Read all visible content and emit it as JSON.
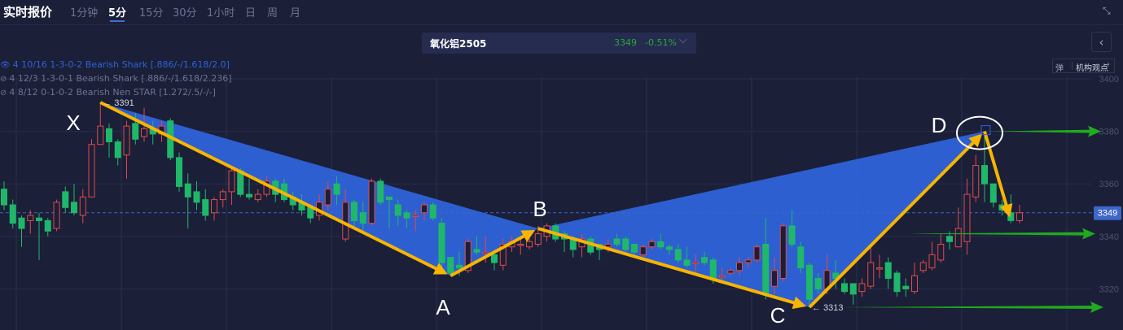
{
  "header": {
    "title": "实时报价",
    "tabs": [
      {
        "label": "1分钟",
        "active": false
      },
      {
        "label": "5分",
        "active": true
      },
      {
        "label": "15分",
        "active": false
      },
      {
        "label": "30分",
        "active": false
      },
      {
        "label": "1小时",
        "active": false
      },
      {
        "label": "日",
        "active": false
      },
      {
        "label": "周",
        "active": false
      },
      {
        "label": "月",
        "active": false
      }
    ],
    "shrink_icon": "collapse-arrows-icon"
  },
  "symbol": {
    "name": "氧化铝2505",
    "price": "3349",
    "change": "-0.51%",
    "dropdown_icon": "chevron-down-icon"
  },
  "side": {
    "back_icon": "chevron-left-icon",
    "views_label": "机构观点",
    "views_icon": "chevron-right-icon"
  },
  "legend": [
    {
      "text": "4 10/16 1-3-0-2 Bearish Shark [.886/-/1.618/2.0]",
      "visible": true,
      "color": "#2f63d8"
    },
    {
      "text": "4 12/3 1-3-0-1 Bearish Shark [.886/-/1.618/2.236]",
      "visible": false,
      "color": "#6d7391"
    },
    {
      "text": "4 8/12 0-1-0-2 Bearish Nen STAR [1.272/.5/-/-]",
      "visible": false,
      "color": "#6d7391"
    }
  ],
  "colors": {
    "up": "#e04a4a",
    "down": "#1fb86a",
    "pattern_fill": "#2e63d9",
    "arrow_yellow": "#f7b500",
    "arrow_green": "#1faa1f",
    "background": "#1b1f38",
    "price_tag": "#3d67c9"
  },
  "chart_data": {
    "type": "candlestick",
    "yaxis": {
      "ticks": [
        3400,
        3380,
        3360,
        3340,
        3320
      ],
      "range": [
        3300,
        3400
      ],
      "position": "right"
    },
    "grid": true,
    "last_price": 3349,
    "candles_ohlc": [
      [
        3358,
        3361,
        3350,
        3352
      ],
      [
        3352,
        3354,
        3343,
        3345
      ],
      [
        3347,
        3348,
        3336,
        3343
      ],
      [
        3346,
        3350,
        3341,
        3348
      ],
      [
        3347,
        3349,
        3331,
        3346
      ],
      [
        3346,
        3347,
        3340,
        3342
      ],
      [
        3343,
        3354,
        3342,
        3353
      ],
      [
        3357,
        3359,
        3349,
        3351
      ],
      [
        3353,
        3360,
        3348,
        3349
      ],
      [
        3348,
        3358,
        3345,
        3355
      ],
      [
        3355,
        3377,
        3355,
        3375
      ],
      [
        3375,
        3391,
        3375,
        3382
      ],
      [
        3381,
        3383,
        3370,
        3376
      ],
      [
        3376,
        3377,
        3367,
        3370
      ],
      [
        3371,
        3384,
        3362,
        3382
      ],
      [
        3383,
        3387,
        3375,
        3377
      ],
      [
        3378,
        3389,
        3376,
        3381
      ],
      [
        3381,
        3384,
        3375,
        3379
      ],
      [
        3379,
        3384,
        3376,
        3382
      ],
      [
        3384,
        3385,
        3369,
        3370
      ],
      [
        3370,
        3372,
        3357,
        3359
      ],
      [
        3360,
        3364,
        3343,
        3355
      ],
      [
        3357,
        3361,
        3350,
        3353
      ],
      [
        3354,
        3358,
        3346,
        3348
      ],
      [
        3349,
        3355,
        3346,
        3354
      ],
      [
        3354,
        3358,
        3351,
        3357
      ],
      [
        3357,
        3366,
        3352,
        3365
      ],
      [
        3365,
        3366,
        3355,
        3356
      ],
      [
        3356,
        3362,
        3354,
        3355
      ],
      [
        3354,
        3358,
        3353,
        3356
      ],
      [
        3356,
        3363,
        3355,
        3361
      ],
      [
        3361,
        3362,
        3353,
        3356
      ],
      [
        3360,
        3362,
        3353,
        3354
      ],
      [
        3355,
        3357,
        3350,
        3352
      ],
      [
        3353,
        3356,
        3348,
        3350
      ],
      [
        3351,
        3352,
        3345,
        3347
      ],
      [
        3348,
        3356,
        3346,
        3353
      ],
      [
        3352,
        3361,
        3350,
        3358
      ],
      [
        3360,
        3363,
        3352,
        3356
      ],
      [
        3339,
        3358,
        3338,
        3353
      ],
      [
        3353,
        3354,
        3343,
        3346
      ],
      [
        3349,
        3353,
        3342,
        3345
      ],
      [
        3345,
        3362,
        3344,
        3361
      ],
      [
        3361,
        3362,
        3352,
        3353
      ],
      [
        3355,
        3355,
        3343,
        3354
      ],
      [
        3352,
        3354,
        3344,
        3348
      ],
      [
        3349,
        3350,
        3343,
        3347
      ],
      [
        3348,
        3350,
        3342,
        3348
      ],
      [
        3349,
        3353,
        3346,
        3352
      ],
      [
        3352,
        3353,
        3346,
        3347
      ],
      [
        3345,
        3347,
        3328,
        3330
      ],
      [
        3332,
        3332,
        3325,
        3326
      ],
      [
        3329,
        3334,
        3325,
        3328
      ],
      [
        3327,
        3339,
        3326,
        3338
      ],
      [
        3335,
        3340,
        3333,
        3334
      ],
      [
        3334,
        3340,
        3330,
        3334
      ],
      [
        3333,
        3335,
        3327,
        3330
      ],
      [
        3329,
        3339,
        3327,
        3337
      ],
      [
        3336,
        3340,
        3334,
        3338
      ],
      [
        3337,
        3340,
        3333,
        3337
      ],
      [
        3336,
        3340,
        3335,
        3338
      ],
      [
        3337,
        3344,
        3336,
        3341
      ],
      [
        3340,
        3345,
        3338,
        3344
      ],
      [
        3344,
        3345,
        3338,
        3339
      ],
      [
        3341,
        3342,
        3334,
        3339
      ],
      [
        3339,
        3340,
        3332,
        3335
      ],
      [
        3336,
        3341,
        3332,
        3339
      ],
      [
        3339,
        3340,
        3333,
        3334
      ],
      [
        3337,
        3337,
        3331,
        3335
      ],
      [
        3336,
        3339,
        3334,
        3337
      ],
      [
        3339,
        3341,
        3336,
        3337
      ],
      [
        3339,
        3340,
        3334,
        3335
      ],
      [
        3337,
        3337,
        3333,
        3334
      ],
      [
        3333,
        3337,
        3332,
        3336
      ],
      [
        3336,
        3339,
        3335,
        3338
      ],
      [
        3338,
        3341,
        3335,
        3336
      ],
      [
        3336,
        3337,
        3333,
        3335
      ],
      [
        3335,
        3337,
        3330,
        3331
      ],
      [
        3331,
        3336,
        3328,
        3329
      ],
      [
        3330,
        3333,
        3325,
        3330
      ],
      [
        3332,
        3334,
        3329,
        3330
      ],
      [
        3331,
        3332,
        3322,
        3324
      ],
      [
        3325,
        3328,
        3323,
        3325
      ],
      [
        3326,
        3328,
        3325,
        3327
      ],
      [
        3327,
        3332,
        3325,
        3330
      ],
      [
        3330,
        3332,
        3328,
        3331
      ],
      [
        3331,
        3337,
        3330,
        3336
      ],
      [
        3337,
        3347,
        3316,
        3318
      ],
      [
        3321,
        3332,
        3318,
        3327
      ],
      [
        3324,
        3345,
        3323,
        3344
      ],
      [
        3344,
        3350,
        3336,
        3337
      ],
      [
        3336,
        3338,
        3326,
        3328
      ],
      [
        3329,
        3330,
        3313,
        3316
      ],
      [
        3324,
        3326,
        3318,
        3320
      ],
      [
        3320,
        3333,
        3318,
        3327
      ],
      [
        3326,
        3331,
        3320,
        3324
      ],
      [
        3322,
        3324,
        3318,
        3319
      ],
      [
        3322,
        3322,
        3314,
        3318
      ],
      [
        3319,
        3324,
        3317,
        3322
      ],
      [
        3321,
        3336,
        3320,
        3330
      ],
      [
        3328,
        3333,
        3324,
        3328
      ],
      [
        3330,
        3332,
        3320,
        3324
      ],
      [
        3326,
        3327,
        3317,
        3319
      ],
      [
        3321,
        3324,
        3317,
        3320
      ],
      [
        3319,
        3330,
        3318,
        3325
      ],
      [
        3327,
        3331,
        3326,
        3330
      ],
      [
        3328,
        3338,
        3327,
        3333
      ],
      [
        3331,
        3341,
        3330,
        3337
      ],
      [
        3340,
        3342,
        3335,
        3338
      ],
      [
        3336,
        3351,
        3336,
        3343
      ],
      [
        3338,
        3362,
        3333,
        3356
      ],
      [
        3355,
        3371,
        3353,
        3367
      ],
      [
        3367,
        3380,
        3353,
        3360
      ],
      [
        3360,
        3360,
        3351,
        3353
      ],
      [
        3352,
        3354,
        3348,
        3350
      ],
      [
        3349,
        3356,
        3345,
        3346
      ],
      [
        3346,
        3352,
        3345,
        3349
      ]
    ],
    "pattern_points": [
      {
        "label": "X",
        "index": 11,
        "price": 3391
      },
      {
        "label": "A",
        "index": 51,
        "price": 3325
      },
      {
        "label": "B",
        "index": 61,
        "price": 3343
      },
      {
        "label": "C",
        "index": 92,
        "price": 3313
      },
      {
        "label": "D",
        "index": 112,
        "price": 3380
      }
    ],
    "price_annotations": [
      {
        "text": "3391",
        "index": 11,
        "price": 3391
      },
      {
        "text": "3313",
        "index": 92,
        "price": 3313
      }
    ],
    "target_arrows": [
      3380,
      3341,
      3313
    ],
    "reversal_arrow": {
      "from_index": 112,
      "from_price": 3380,
      "to_index": 115,
      "to_price": 3346
    }
  }
}
